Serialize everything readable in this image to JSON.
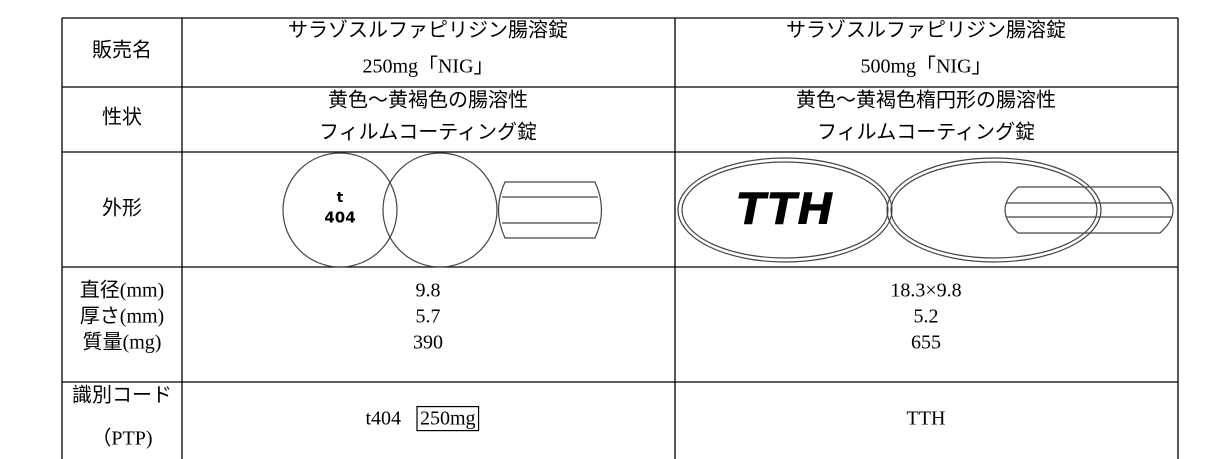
{
  "table": {
    "rows": [
      {
        "label": "販売名",
        "cells": [
          [
            "サラゾスルファピリジン腸溶錠",
            "250mg「NIG」"
          ],
          [
            "サラゾスルファピリジン腸溶錠",
            "500mg「NIG」"
          ]
        ]
      },
      {
        "label": "性状",
        "cells": [
          [
            "黄色～黄褐色の腸溶性",
            "フィルムコーティング錠"
          ],
          [
            "黄色～黄褐色楕円形の腸溶性",
            "フィルムコーティング錠"
          ]
        ]
      },
      {
        "label": "外形",
        "imprints": [
          [
            "t",
            "404"
          ],
          [
            "TTH"
          ]
        ]
      },
      {
        "labels": [
          "直径(mm)",
          "厚さ(mm)",
          "質量(mg)"
        ],
        "cells": [
          [
            "9.8",
            "5.7",
            "390"
          ],
          [
            "18.3×9.8",
            "5.2",
            "655"
          ]
        ]
      },
      {
        "label": [
          "識別コード",
          "（PTP)"
        ],
        "cells": [
          [
            "t404",
            "250mg"
          ],
          [
            "TTH"
          ]
        ]
      }
    ]
  }
}
